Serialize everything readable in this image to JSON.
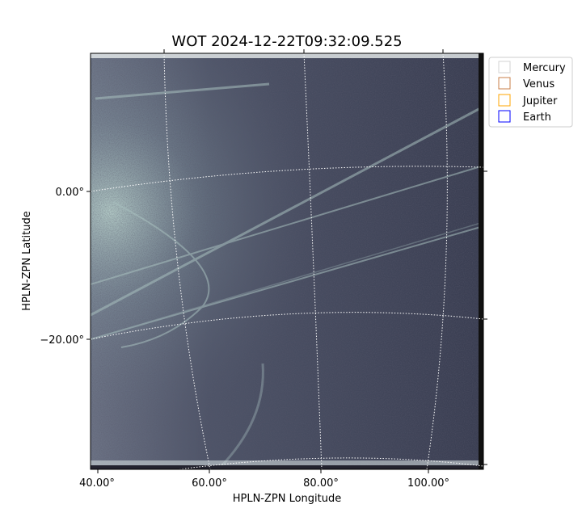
{
  "chart_data": {
    "type": "image",
    "title": "WOT 2024-12-22T09:32:09.525",
    "xlabel": "HPLN-ZPN Longitude",
    "ylabel": "HPLN-ZPN Latitude",
    "x_ticks": [
      "40.00°",
      "60.00°",
      "80.00°",
      "100.00°"
    ],
    "y_ticks": [
      "0.00°",
      "−20.00°"
    ],
    "grid": true,
    "colormap": "bone",
    "legend": {
      "placement": "outside-top-right",
      "entries": [
        {
          "name": "Mercury",
          "color": "#d3d3d3"
        },
        {
          "name": "Venus",
          "color": "#c87f4a"
        },
        {
          "name": "Jupiter",
          "color": "#ffa500"
        },
        {
          "name": "Earth",
          "color": "#0000ff"
        }
      ]
    }
  }
}
